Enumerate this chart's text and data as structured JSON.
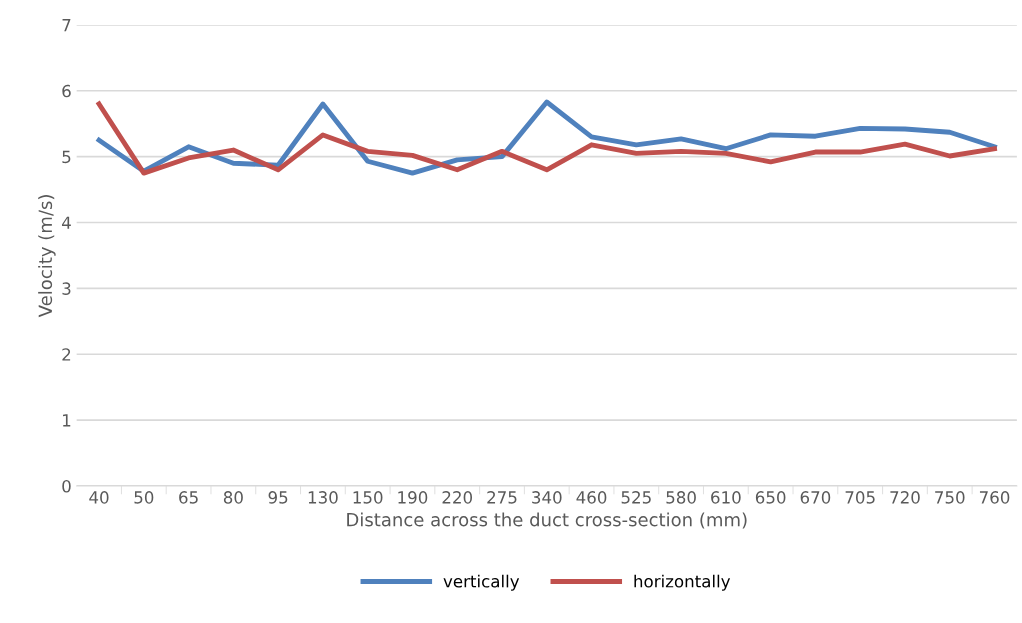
{
  "chart_data": {
    "type": "line",
    "xlabel": "Distance across the duct cross-section (mm)",
    "ylabel": "Velocity (m/s)",
    "categories": [
      "40",
      "50",
      "65",
      "80",
      "95",
      "130",
      "150",
      "190",
      "220",
      "275",
      "340",
      "460",
      "525",
      "580",
      "610",
      "650",
      "670",
      "705",
      "720",
      "750",
      "760"
    ],
    "series": [
      {
        "name": "vertically",
        "color": "#4f81bd",
        "values": [
          5.25,
          4.78,
          5.15,
          4.9,
          4.87,
          5.8,
          4.93,
          4.75,
          4.95,
          5.0,
          5.83,
          5.3,
          5.18,
          5.27,
          5.12,
          5.33,
          5.31,
          5.43,
          5.42,
          5.37,
          5.15
        ]
      },
      {
        "name": "horizontally",
        "color": "#c0504d",
        "values": [
          5.8,
          4.75,
          4.98,
          5.1,
          4.8,
          5.33,
          5.08,
          5.02,
          4.8,
          5.08,
          4.8,
          5.18,
          5.05,
          5.08,
          5.05,
          4.92,
          5.07,
          5.07,
          5.19,
          5.01,
          5.12
        ]
      }
    ],
    "ylim": [
      0,
      7
    ],
    "yticks": [
      0,
      1,
      2,
      3,
      4,
      5,
      6,
      7
    ],
    "grid": "y",
    "legend": "bottom",
    "marker": "none",
    "line_style": "solid"
  }
}
